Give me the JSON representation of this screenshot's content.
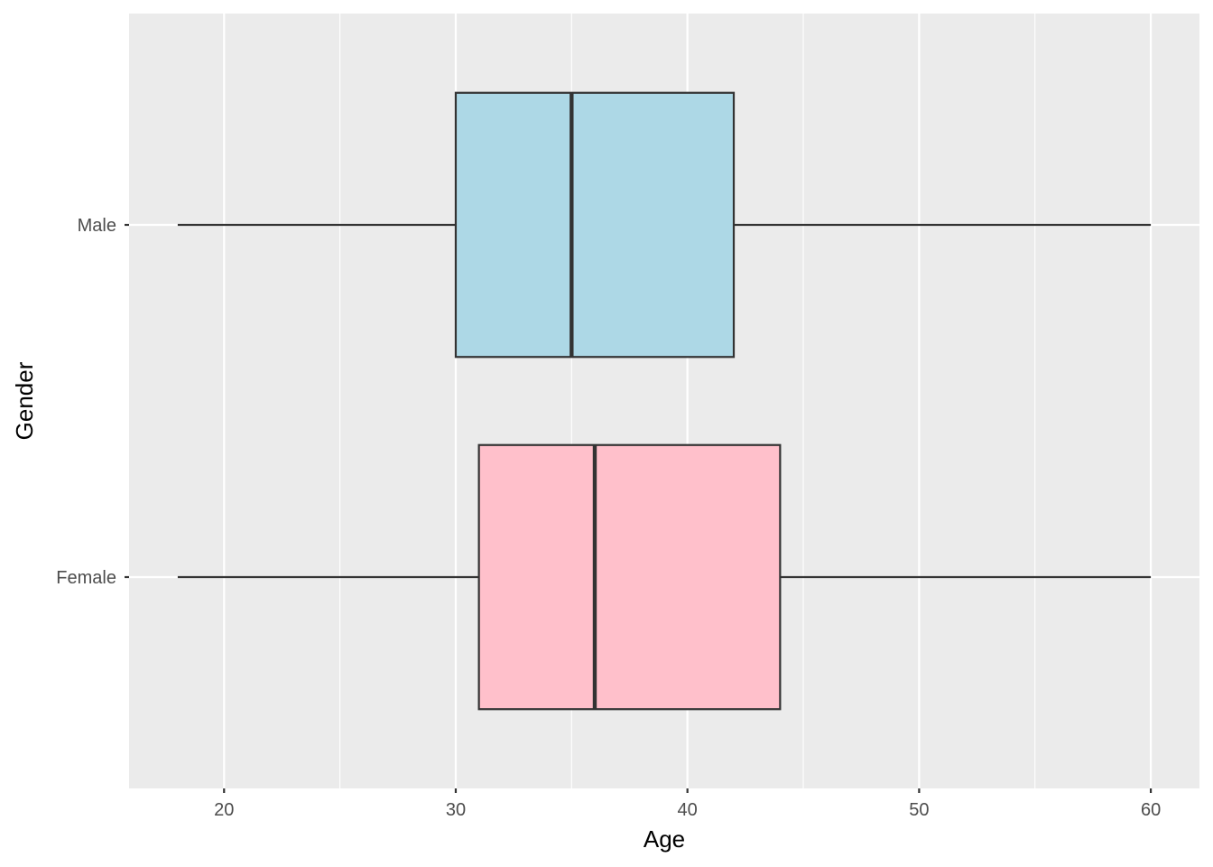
{
  "chart_data": {
    "type": "boxplot",
    "orientation": "horizontal",
    "xlabel": "Age",
    "ylabel": "Gender",
    "xlim": [
      15.9,
      62.1
    ],
    "x_ticks": [
      20,
      30,
      40,
      50,
      60
    ],
    "x_minor_ticks": [
      25,
      35,
      45,
      55
    ],
    "grid": true,
    "categories": [
      "Female",
      "Male"
    ],
    "boxes": [
      {
        "category": "Female",
        "min": 18,
        "q1": 31,
        "median": 36,
        "q3": 44,
        "max": 60,
        "fill": "#FFC0CB"
      },
      {
        "category": "Male",
        "min": 18,
        "q1": 30,
        "median": 35,
        "q3": 42,
        "max": 60,
        "fill": "#ADD8E6"
      }
    ],
    "colors": {
      "panel_background": "#EBEBEB",
      "grid_line": "#FFFFFF",
      "box_outline": "#333333",
      "tick_mark": "#333333"
    }
  }
}
